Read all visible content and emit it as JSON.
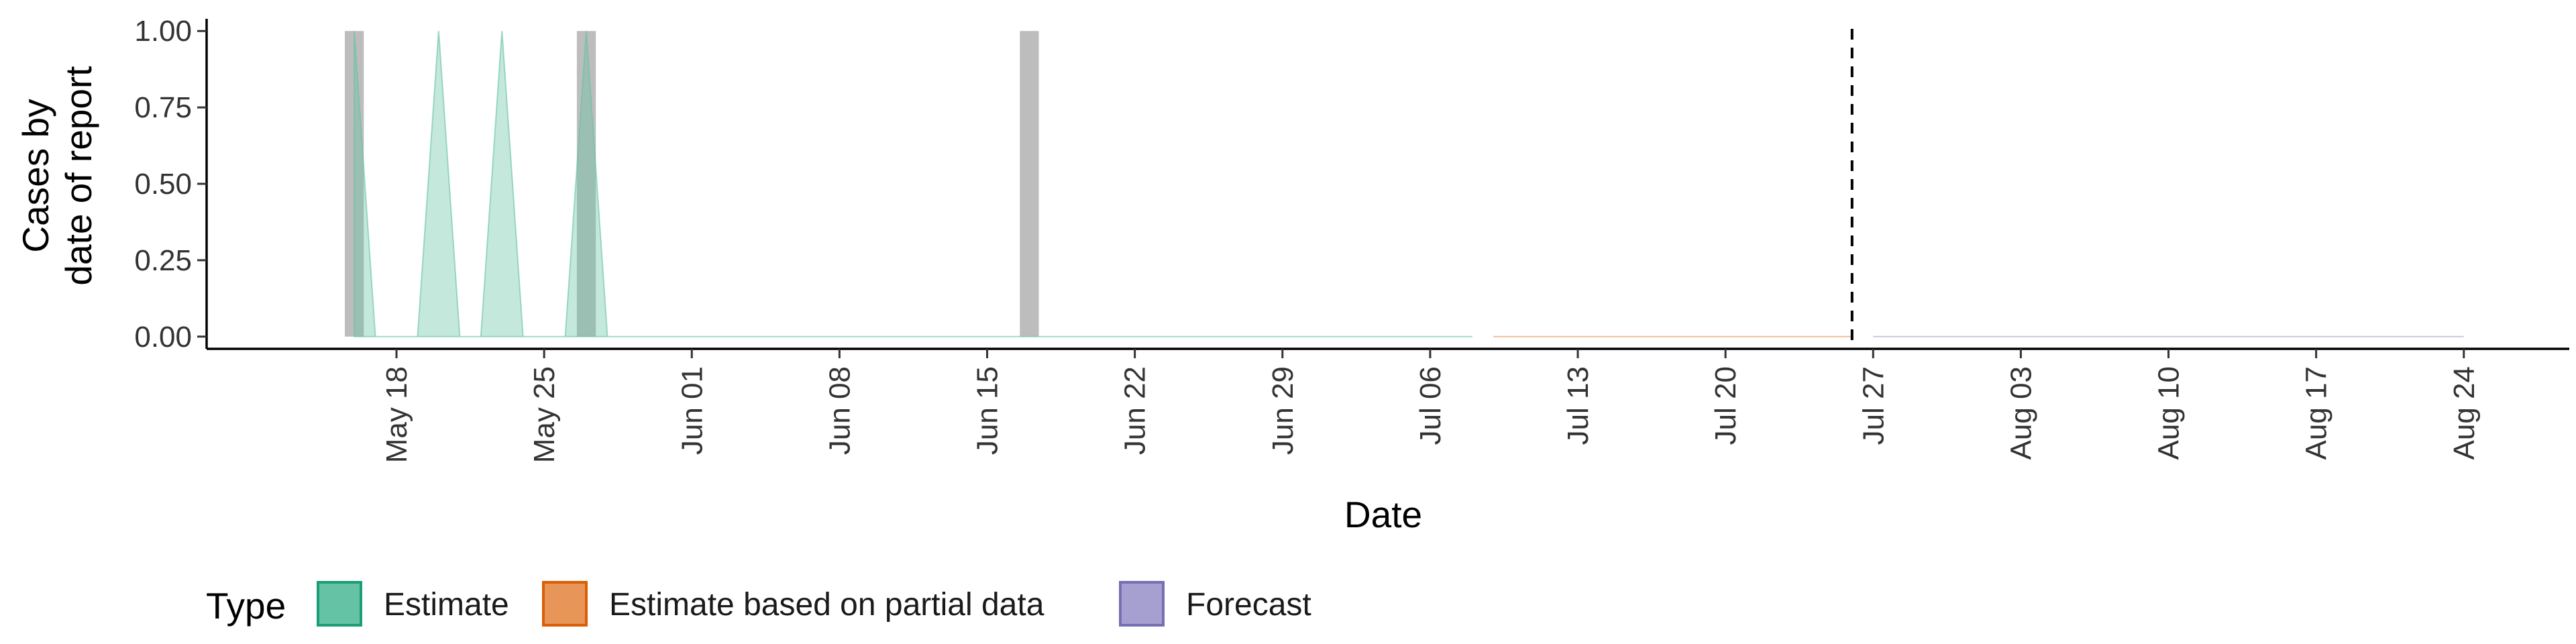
{
  "chart_data": {
    "type": "area",
    "title": "",
    "xlabel": "Date",
    "ylabel_lines": [
      "Cases by",
      "date of report"
    ],
    "x_range": [
      "2022-05-09",
      "2022-08-29"
    ],
    "ylim": [
      -0.04,
      1.04
    ],
    "y_ticks": [
      0,
      0.25,
      0.5,
      0.75,
      1
    ],
    "y_tick_labels": [
      "0.00",
      "0.25",
      "0.50",
      "0.75",
      "1.00"
    ],
    "x_ticks": [
      "2022-05-18",
      "2022-05-25",
      "2022-06-01",
      "2022-06-08",
      "2022-06-15",
      "2022-06-22",
      "2022-06-29",
      "2022-07-06",
      "2022-07-13",
      "2022-07-20",
      "2022-07-27",
      "2022-08-03",
      "2022-08-10",
      "2022-08-17",
      "2022-08-24"
    ],
    "x_tick_labels": [
      "May 18",
      "May 25",
      "Jun 01",
      "Jun 08",
      "Jun 15",
      "Jun 22",
      "Jun 29",
      "Jul 06",
      "Jul 13",
      "Jul 20",
      "Jul 27",
      "Aug 03",
      "Aug 10",
      "Aug 17",
      "Aug 24"
    ],
    "grid": false,
    "legend": {
      "title": "Type",
      "position": "bottom-left",
      "entries": [
        {
          "name": "Estimate",
          "fill": "#66c2a5",
          "stroke": "#1b9e77"
        },
        {
          "name": "Estimate based on partial data",
          "fill": "#e8955a",
          "stroke": "#d95f02"
        },
        {
          "name": "Forecast",
          "fill": "#a6a0d0",
          "stroke": "#7570b3"
        }
      ]
    },
    "reported_cases": [
      {
        "date": "2022-05-16",
        "value": 1
      },
      {
        "date": "2022-05-27",
        "value": 1
      },
      {
        "date": "2022-06-17",
        "value": 1
      }
    ],
    "series": [
      {
        "name": "Estimate",
        "color": "#66c2a5",
        "points": [
          {
            "date": "2022-05-16",
            "upper": 1
          },
          {
            "date": "2022-05-17",
            "upper": 0
          },
          {
            "date": "2022-05-19",
            "upper": 0
          },
          {
            "date": "2022-05-20",
            "upper": 1
          },
          {
            "date": "2022-05-21",
            "upper": 0
          },
          {
            "date": "2022-05-22",
            "upper": 0
          },
          {
            "date": "2022-05-23",
            "upper": 1
          },
          {
            "date": "2022-05-24",
            "upper": 0
          },
          {
            "date": "2022-05-26",
            "upper": 0
          },
          {
            "date": "2022-05-27",
            "upper": 1
          },
          {
            "date": "2022-05-28",
            "upper": 0
          },
          {
            "date": "2022-07-08",
            "upper": 0
          }
        ]
      },
      {
        "name": "Estimate based on partial data",
        "color": "#e8955a",
        "points": [
          {
            "date": "2022-07-09",
            "upper": 0
          },
          {
            "date": "2022-07-26",
            "upper": 0
          }
        ]
      },
      {
        "name": "Forecast",
        "color": "#a6a0d0",
        "points": [
          {
            "date": "2022-07-27",
            "upper": 0
          },
          {
            "date": "2022-08-24",
            "upper": 0
          }
        ]
      }
    ],
    "vline_date": "2022-07-26"
  }
}
